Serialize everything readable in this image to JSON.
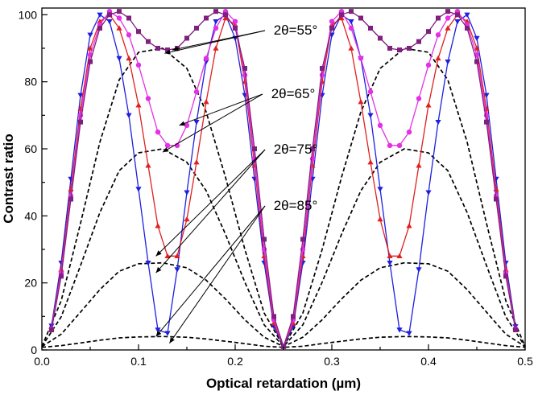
{
  "chart_data": {
    "type": "line",
    "xlabel": "Optical retardation (µm)",
    "ylabel": "Contrast ratio",
    "xlim": [
      0.0,
      0.5
    ],
    "ylim": [
      0,
      102
    ],
    "xticks": [
      0.0,
      0.1,
      0.2,
      0.3,
      0.4,
      0.5
    ],
    "yticks": [
      0,
      20,
      40,
      60,
      80,
      100
    ],
    "xtick_labels": [
      "0.0",
      "0.1",
      "0.2",
      "0.3",
      "0.4",
      "0.5"
    ],
    "ytick_labels": [
      "0",
      "20",
      "40",
      "60",
      "80",
      "100"
    ],
    "grid": false,
    "annotations": [
      {
        "text": "2θ=55°",
        "targets": [
          [
            0.135,
            89.5
          ],
          [
            0.127,
            88.5
          ]
        ]
      },
      {
        "text": "2θ=65°",
        "targets": [
          [
            0.142,
            67
          ],
          [
            0.125,
            59
          ]
        ]
      },
      {
        "text": "2θ=75°",
        "targets": [
          [
            0.118,
            28
          ],
          [
            0.118,
            23
          ]
        ]
      },
      {
        "text": "2θ=85°",
        "targets": [
          [
            0.118,
            4
          ],
          [
            0.132,
            2
          ]
        ]
      }
    ],
    "series": [
      {
        "color": "#1f1fe0",
        "marker": "triangle-down",
        "dashed": false,
        "x": [
          0.01,
          0.02,
          0.03,
          0.04,
          0.05,
          0.06,
          0.07,
          0.08,
          0.09,
          0.1,
          0.11,
          0.12,
          0.13,
          0.14,
          0.15,
          0.16,
          0.17,
          0.18,
          0.19,
          0.2,
          0.21,
          0.22,
          0.23,
          0.24,
          0.25,
          0.26,
          0.27,
          0.28,
          0.29,
          0.3,
          0.31,
          0.32,
          0.33,
          0.34,
          0.35,
          0.36,
          0.37,
          0.38,
          0.39,
          0.4,
          0.41,
          0.42,
          0.43,
          0.44,
          0.45,
          0.46,
          0.47,
          0.48,
          0.49
        ],
        "y": [
          7.2,
          26,
          51,
          76,
          94,
          100,
          98,
          87,
          70,
          48,
          26,
          6,
          5,
          24,
          47,
          68,
          86,
          98,
          100,
          93,
          76,
          51,
          26,
          7,
          1,
          7,
          26,
          51,
          76,
          94,
          100,
          98,
          87,
          70,
          48,
          26,
          6,
          5,
          24,
          47,
          68,
          86,
          98,
          100,
          93,
          76,
          51,
          26,
          7
        ]
      },
      {
        "color": "#e01f1f",
        "marker": "triangle-up",
        "dashed": false,
        "x": [
          0.01,
          0.02,
          0.03,
          0.04,
          0.05,
          0.06,
          0.07,
          0.08,
          0.09,
          0.1,
          0.11,
          0.12,
          0.13,
          0.14,
          0.15,
          0.16,
          0.17,
          0.18,
          0.19,
          0.2,
          0.21,
          0.22,
          0.23,
          0.24,
          0.25,
          0.26,
          0.27,
          0.28,
          0.29,
          0.3,
          0.31,
          0.32,
          0.33,
          0.34,
          0.35,
          0.36,
          0.37,
          0.38,
          0.39,
          0.4,
          0.41,
          0.42,
          0.43,
          0.44,
          0.45,
          0.46,
          0.47,
          0.48,
          0.49
        ],
        "y": [
          6.5,
          24,
          48,
          72,
          90,
          98,
          100,
          96,
          87,
          73,
          55,
          37,
          28,
          28,
          39,
          56,
          74,
          90,
          99,
          97,
          80,
          55,
          28,
          8,
          1,
          8,
          28,
          55,
          80,
          97,
          99,
          90,
          74,
          56,
          39,
          28,
          28,
          37,
          55,
          73,
          87,
          96,
          100,
          98,
          90,
          72,
          48,
          24,
          6.5
        ]
      },
      {
        "color": "#e52fe5",
        "marker": "circle",
        "dashed": false,
        "x": [
          0.01,
          0.02,
          0.03,
          0.04,
          0.05,
          0.06,
          0.07,
          0.08,
          0.09,
          0.1,
          0.11,
          0.12,
          0.13,
          0.14,
          0.15,
          0.16,
          0.17,
          0.18,
          0.19,
          0.2,
          0.21,
          0.22,
          0.23,
          0.24,
          0.25,
          0.26,
          0.27,
          0.28,
          0.29,
          0.3,
          0.31,
          0.32,
          0.33,
          0.34,
          0.35,
          0.36,
          0.37,
          0.38,
          0.39,
          0.4,
          0.41,
          0.42,
          0.43,
          0.44,
          0.45,
          0.46,
          0.47,
          0.48,
          0.49
        ],
        "y": [
          6.3,
          23,
          46,
          70,
          88,
          97,
          101,
          99,
          94,
          85,
          75,
          65,
          61,
          61,
          67,
          77,
          87,
          96,
          101,
          98,
          82,
          57,
          30,
          9,
          1,
          9,
          30,
          57,
          82,
          98,
          101,
          96,
          87,
          77,
          67,
          61,
          61,
          65,
          75,
          85,
          94,
          99,
          101,
          97,
          88,
          70,
          46,
          23,
          6.3
        ]
      },
      {
        "color": "#7f1f7f",
        "marker": "square",
        "dashed": false,
        "x": [
          0.01,
          0.02,
          0.03,
          0.04,
          0.05,
          0.06,
          0.07,
          0.08,
          0.09,
          0.1,
          0.11,
          0.12,
          0.13,
          0.14,
          0.15,
          0.16,
          0.17,
          0.18,
          0.19,
          0.2,
          0.21,
          0.22,
          0.23,
          0.24,
          0.25,
          0.26,
          0.27,
          0.28,
          0.29,
          0.3,
          0.31,
          0.32,
          0.33,
          0.34,
          0.35,
          0.36,
          0.37,
          0.38,
          0.39,
          0.4,
          0.41,
          0.42,
          0.43,
          0.44,
          0.45,
          0.46,
          0.47,
          0.48,
          0.49
        ],
        "y": [
          6,
          22,
          45,
          68,
          86,
          96,
          100,
          101,
          99,
          95,
          92,
          90,
          89.5,
          90,
          93,
          96,
          99,
          101,
          100,
          96,
          84,
          60,
          33,
          10,
          1,
          10,
          33,
          60,
          84,
          96,
          100,
          101,
          99,
          96,
          93,
          90,
          89.5,
          90,
          92,
          95,
          99,
          101,
          100,
          96,
          86,
          68,
          45,
          22,
          6
        ]
      },
      {
        "color": "#000000",
        "marker": "none",
        "dashed": true,
        "x": [
          0.0,
          0.02,
          0.04,
          0.06,
          0.08,
          0.1,
          0.125,
          0.15,
          0.17,
          0.19,
          0.21,
          0.23,
          0.25,
          0.27,
          0.29,
          0.31,
          0.33,
          0.35,
          0.375,
          0.4,
          0.42,
          0.44,
          0.46,
          0.48,
          0.5
        ],
        "y": [
          1,
          14.7,
          37.8,
          62,
          80.6,
          88.8,
          90,
          84,
          71,
          51.5,
          30,
          11,
          1,
          11,
          30,
          51.5,
          71,
          84,
          90,
          88.8,
          80.6,
          62,
          37.8,
          14.7,
          1
        ]
      },
      {
        "color": "#000000",
        "marker": "none",
        "dashed": true,
        "x": [
          0.0,
          0.02,
          0.04,
          0.06,
          0.08,
          0.1,
          0.125,
          0.15,
          0.17,
          0.19,
          0.21,
          0.23,
          0.25,
          0.27,
          0.29,
          0.31,
          0.33,
          0.35,
          0.375,
          0.4,
          0.42,
          0.44,
          0.46,
          0.48,
          0.5
        ],
        "y": [
          1,
          9.9,
          25.2,
          41,
          53.5,
          58.8,
          60,
          56,
          47.5,
          34.5,
          20.2,
          7.5,
          1,
          7.5,
          20.2,
          34.5,
          47.5,
          56,
          60,
          58.8,
          53.5,
          41,
          25.2,
          9.9,
          1
        ]
      },
      {
        "color": "#000000",
        "marker": "none",
        "dashed": true,
        "x": [
          0.0,
          0.02,
          0.04,
          0.06,
          0.08,
          0.1,
          0.125,
          0.15,
          0.17,
          0.19,
          0.21,
          0.23,
          0.25,
          0.27,
          0.29,
          0.31,
          0.33,
          0.35,
          0.375,
          0.4,
          0.42,
          0.44,
          0.46,
          0.48,
          0.5
        ],
        "y": [
          1,
          4.7,
          11.3,
          18,
          23.5,
          25.7,
          26,
          24.5,
          20.8,
          15.2,
          9,
          3.8,
          1,
          3.8,
          9,
          15.2,
          20.8,
          24.5,
          26,
          25.7,
          23.5,
          18,
          11.3,
          4.7,
          1
        ]
      },
      {
        "color": "#000000",
        "marker": "none",
        "dashed": true,
        "x": [
          0.0,
          0.02,
          0.04,
          0.06,
          0.08,
          0.1,
          0.125,
          0.15,
          0.17,
          0.19,
          0.21,
          0.23,
          0.25,
          0.27,
          0.29,
          0.31,
          0.33,
          0.35,
          0.375,
          0.4,
          0.42,
          0.44,
          0.46,
          0.48,
          0.5
        ],
        "y": [
          0.8,
          1.3,
          2.1,
          2.9,
          3.6,
          3.9,
          4,
          3.8,
          3.3,
          2.6,
          1.9,
          1.1,
          0.8,
          1.1,
          1.9,
          2.6,
          3.3,
          3.8,
          4,
          3.9,
          3.6,
          2.9,
          2.1,
          1.3,
          0.8
        ]
      }
    ]
  }
}
